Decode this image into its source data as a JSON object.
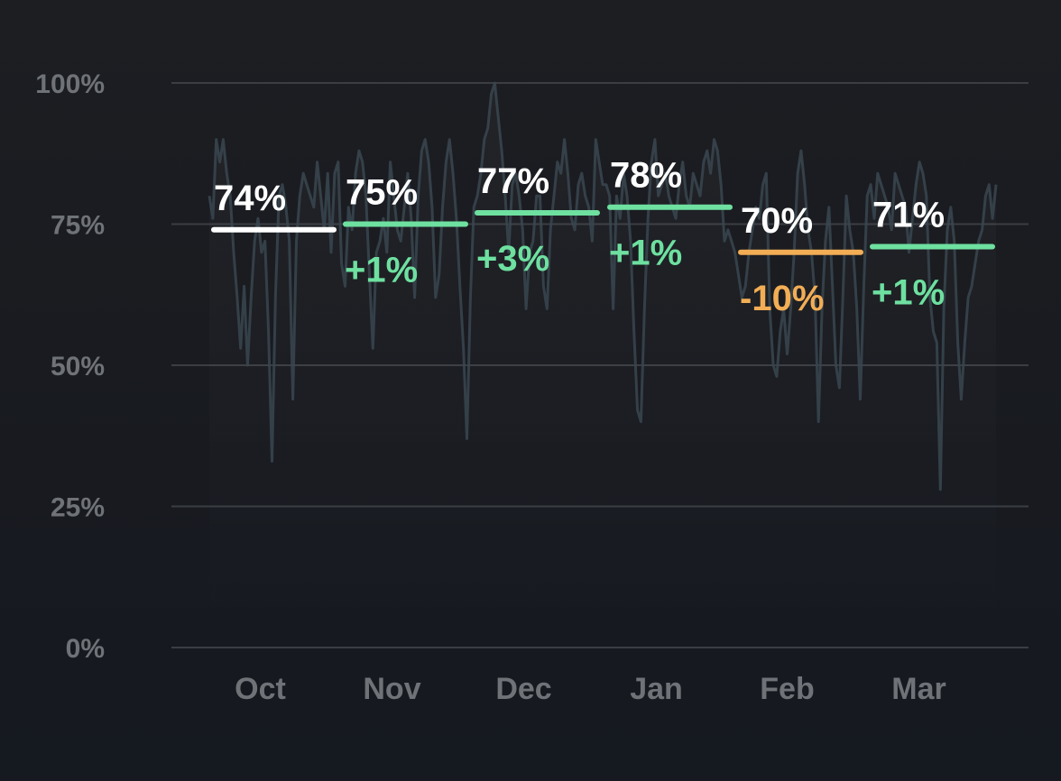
{
  "colors": {
    "background": "#1a1c21",
    "grid": "#3a3d42",
    "axis_text": "#6f7378",
    "daily_line": "#3a4650",
    "baseline": "#ffffff",
    "increase": "#6ee0a0",
    "decrease": "#f2ad55",
    "value_text": "#ffffff"
  },
  "chart_data": {
    "type": "line",
    "title": "",
    "xlabel": "",
    "ylabel": "",
    "ylim": [
      0,
      100
    ],
    "y_ticks": [
      "100%",
      "75%",
      "50%",
      "25%",
      "0%"
    ],
    "y_tick_values": [
      100,
      75,
      50,
      25,
      0
    ],
    "categories": [
      "Oct",
      "Nov",
      "Dec",
      "Jan",
      "Feb",
      "Mar"
    ],
    "monthly": [
      {
        "month": "Oct",
        "value": 74,
        "label": "74%",
        "change": "",
        "trend": "baseline"
      },
      {
        "month": "Nov",
        "value": 75,
        "label": "75%",
        "change": "+1%",
        "trend": "up"
      },
      {
        "month": "Dec",
        "value": 77,
        "label": "77%",
        "change": "+3%",
        "trend": "up"
      },
      {
        "month": "Jan",
        "value": 78,
        "label": "78%",
        "change": "+1%",
        "trend": "up"
      },
      {
        "month": "Feb",
        "value": 70,
        "label": "70%",
        "change": "-10%",
        "trend": "down"
      },
      {
        "month": "Mar",
        "value": 71,
        "label": "71%",
        "change": "+1%",
        "trend": "up"
      }
    ],
    "daily_series": {
      "name": "daily",
      "values": [
        80,
        76,
        90,
        86,
        90,
        84,
        80,
        70,
        62,
        53,
        64,
        50,
        62,
        72,
        76,
        70,
        72,
        56,
        33,
        62,
        80,
        82,
        78,
        72,
        44,
        72,
        80,
        84,
        82,
        80,
        78,
        86,
        80,
        74,
        84,
        70,
        84,
        86,
        68,
        64,
        78,
        74,
        84,
        88,
        86,
        80,
        66,
        53,
        70,
        72,
        76,
        70,
        86,
        80,
        74,
        72,
        78,
        84,
        76,
        62,
        80,
        88,
        90,
        86,
        78,
        62,
        66,
        78,
        86,
        90,
        84,
        76,
        64,
        53,
        37,
        62,
        78,
        80,
        84,
        90,
        92,
        98,
        100,
        94,
        88,
        80,
        70,
        82,
        84,
        80,
        74,
        60,
        70,
        72,
        80,
        80,
        64,
        60,
        74,
        80,
        86,
        84,
        90,
        84,
        76,
        74,
        82,
        84,
        80,
        78,
        72,
        90,
        86,
        82,
        82,
        80,
        60,
        80,
        76,
        84,
        80,
        72,
        56,
        42,
        40,
        60,
        76,
        86,
        90,
        80,
        82,
        84,
        80,
        78,
        76,
        82,
        86,
        80,
        78,
        84,
        82,
        80,
        86,
        88,
        84,
        90,
        88,
        82,
        72,
        74,
        72,
        70,
        66,
        62,
        64,
        70,
        74,
        78,
        76,
        82,
        84,
        60,
        50,
        48,
        56,
        60,
        52,
        60,
        70,
        84,
        88,
        82,
        74,
        70,
        62,
        40,
        60,
        72,
        78,
        64,
        50,
        46,
        62,
        80,
        74,
        70,
        60,
        44,
        64,
        80,
        82,
        76,
        84,
        82,
        80,
        78,
        74,
        84,
        82,
        80,
        78,
        70,
        76,
        82,
        86,
        84,
        80,
        62,
        56,
        54,
        28,
        60,
        74,
        78,
        72,
        54,
        44,
        54,
        62,
        64,
        68,
        72,
        74,
        80,
        82,
        76,
        82
      ]
    }
  }
}
